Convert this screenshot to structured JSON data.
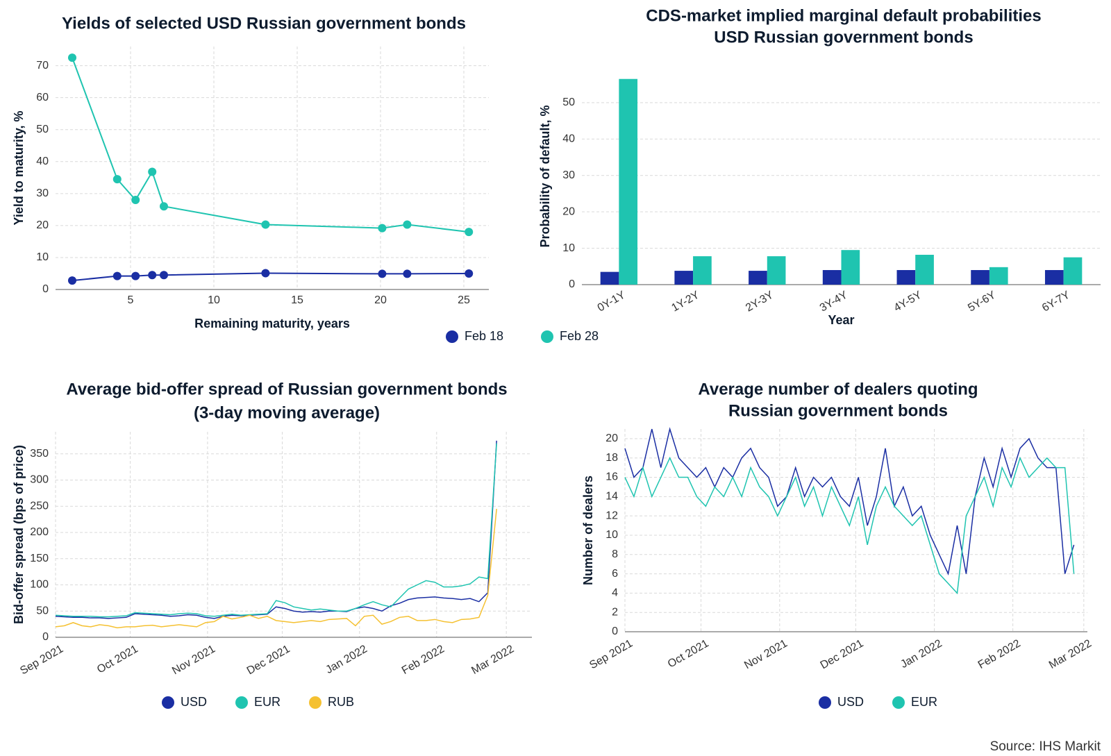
{
  "chart_data": [
    {
      "type": "line",
      "title": [
        "Yields of selected USD Russian government bonds"
      ],
      "x_label": "Remaining maturity, years",
      "y_label": "Yield to maturity, %",
      "x": [
        1.5,
        4.2,
        5.3,
        6.3,
        7.0,
        13.1,
        20.1,
        21.6,
        25.3
      ],
      "series": [
        {
          "name": "Feb 18",
          "color": "#1a2ea3",
          "values": [
            2.8,
            4.2,
            4.2,
            4.5,
            4.5,
            5.1,
            4.9,
            4.9,
            5.0
          ]
        },
        {
          "name": "Feb 28",
          "color": "#1fc4b0",
          "values": [
            72.5,
            34.5,
            28,
            36.8,
            26,
            20.3,
            19.2,
            20.3,
            18
          ]
        }
      ],
      "markers": true,
      "xlim": [
        0.5,
        26.5
      ],
      "xticks": [
        5,
        10,
        15,
        20,
        25
      ],
      "ylim": [
        0,
        76
      ],
      "yticks": [
        0,
        10,
        20,
        30,
        40,
        50,
        60,
        70
      ],
      "grid": true,
      "legend": "bottom"
    },
    {
      "type": "bar",
      "title": [
        "CDS-market implied marginal default probabilities",
        "USD Russian government bonds"
      ],
      "x_label": "Year",
      "y_label": "Probability of default, %",
      "categories": [
        "0Y-1Y",
        "1Y-2Y",
        "2Y-3Y",
        "3Y-4Y",
        "4Y-5Y",
        "5Y-6Y",
        "6Y-7Y"
      ],
      "series": [
        {
          "color": "#1a2ea3",
          "values": [
            3.5,
            3.8,
            3.8,
            4,
            4,
            4,
            4
          ]
        },
        {
          "color": "#1fc4b0",
          "values": [
            56.5,
            7.8,
            7.8,
            9.5,
            8.2,
            4.8,
            7.5
          ]
        }
      ],
      "ylim": [
        0,
        59.5
      ],
      "yticks": [
        0,
        10,
        20,
        30,
        40,
        50
      ],
      "grid": true,
      "xtick_rotation": -30
    },
    {
      "type": "line",
      "title": [
        "Average bid-offer spread of Russian government bonds",
        "(3-day moving average)"
      ],
      "y_label": "Bid-offer spread (bps of price)",
      "series": [
        {
          "name": "USD",
          "color": "#1a2ea3",
          "values": [
            40,
            39,
            38,
            38,
            37,
            37,
            36,
            37,
            38,
            45,
            44,
            43,
            42,
            40,
            41,
            43,
            42,
            38,
            36,
            40,
            42,
            41,
            42,
            43,
            44,
            58,
            55,
            50,
            48,
            49,
            48,
            50,
            50,
            49,
            55,
            58,
            55,
            50,
            60,
            65,
            72,
            75,
            76,
            77,
            75,
            74,
            72,
            74,
            68,
            85,
            375
          ]
        },
        {
          "name": "EUR",
          "color": "#1fc4b0",
          "values": [
            42,
            41,
            40,
            40,
            40,
            39,
            39,
            40,
            41,
            47,
            46,
            45,
            44,
            43,
            45,
            46,
            45,
            41,
            40,
            42,
            44,
            42,
            43,
            44,
            45,
            70,
            66,
            58,
            55,
            52,
            54,
            52,
            50,
            50,
            55,
            62,
            68,
            62,
            58,
            75,
            92,
            100,
            108,
            105,
            96,
            96,
            98,
            102,
            115,
            112,
            370
          ]
        },
        {
          "name": "RUB",
          "color": "#f5c131",
          "values": [
            20,
            22,
            28,
            22,
            20,
            24,
            22,
            18,
            20,
            20,
            22,
            23,
            20,
            22,
            24,
            22,
            20,
            28,
            30,
            40,
            35,
            38,
            42,
            36,
            40,
            32,
            30,
            28,
            30,
            32,
            30,
            34,
            35,
            36,
            22,
            40,
            42,
            25,
            30,
            38,
            40,
            32,
            32,
            34,
            30,
            28,
            34,
            35,
            38,
            80,
            245
          ]
        }
      ],
      "xlim": [
        0,
        54
      ],
      "xticks": [
        {
          "value": 0,
          "label": "Sep 2021"
        },
        {
          "value": 8.47,
          "label": "Oct 2021"
        },
        {
          "value": 17.23,
          "label": "Nov 2021"
        },
        {
          "value": 25.7,
          "label": "Dec 2021"
        },
        {
          "value": 34.46,
          "label": "Jan 2022"
        },
        {
          "value": 43.2,
          "label": "Feb 2022"
        },
        {
          "value": 51.1,
          "label": "Mar 2022"
        }
      ],
      "ylim": [
        0,
        392
      ],
      "yticks": [
        0,
        50,
        100,
        150,
        200,
        250,
        300,
        350
      ],
      "grid": true,
      "legend": "bottom",
      "xtick_rotation": -30
    },
    {
      "type": "line",
      "title": [
        "Average number of dealers quoting",
        "Russian government bonds"
      ],
      "y_label": "Number of dealers",
      "series": [
        {
          "name": "USD",
          "color": "#1a2ea3",
          "values": [
            19,
            16,
            17,
            21,
            17,
            21,
            18,
            17,
            16,
            17,
            15,
            17,
            16,
            18,
            19,
            17,
            16,
            13,
            14,
            17,
            14,
            16,
            15,
            16,
            14,
            13,
            16,
            11,
            14,
            19,
            13,
            15,
            12,
            13,
            10,
            8,
            6,
            11,
            6,
            14,
            18,
            15,
            19,
            16,
            19,
            20,
            18,
            17,
            17,
            6,
            9
          ]
        },
        {
          "name": "EUR",
          "color": "#1fc4b0",
          "values": [
            16,
            14,
            17,
            14,
            16,
            18,
            16,
            16,
            14,
            13,
            15,
            14,
            16,
            14,
            17,
            15,
            14,
            12,
            14,
            16,
            13,
            15,
            12,
            15,
            13,
            11,
            14,
            9,
            13,
            15,
            13,
            12,
            11,
            12,
            9,
            6,
            5,
            4,
            12,
            14,
            16,
            13,
            17,
            15,
            18,
            16,
            17,
            18,
            17,
            17,
            6
          ]
        }
      ],
      "xlim": [
        0,
        51.5
      ],
      "xticks": [
        {
          "value": 0,
          "label": "Sep 2021"
        },
        {
          "value": 8.47,
          "label": "Oct 2021"
        },
        {
          "value": 17.23,
          "label": "Nov 2021"
        },
        {
          "value": 25.7,
          "label": "Dec 2021"
        },
        {
          "value": 34.46,
          "label": "Jan 2022"
        },
        {
          "value": 43.2,
          "label": "Feb 2022"
        },
        {
          "value": 51.1,
          "label": "Mar 2022"
        }
      ],
      "ylim": [
        0,
        21
      ],
      "yticks": [
        0,
        2,
        4,
        6,
        8,
        10,
        12,
        14,
        16,
        18,
        20
      ],
      "grid": true,
      "legend": "bottom",
      "xtick_rotation": -30
    }
  ],
  "source": "Source: IHS Markit"
}
